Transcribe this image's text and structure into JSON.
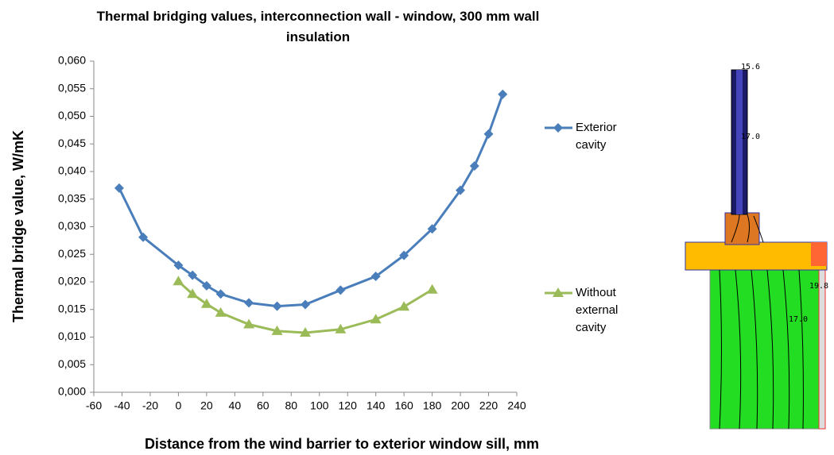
{
  "chart_data": {
    "type": "line",
    "title": "Thermal bridging values, interconnection wall - window, 300 mm wall insulation",
    "x_label": "Distance from the wind barrier to exterior window sill, mm",
    "y_label": "Thermal bridge value, W/mK",
    "xlim": [
      -60,
      240
    ],
    "xticks": [
      -60,
      -40,
      -20,
      0,
      20,
      40,
      60,
      80,
      100,
      120,
      140,
      160,
      180,
      200,
      220,
      240
    ],
    "ylim": [
      0,
      0.06
    ],
    "yticks": [
      {
        "value": 0,
        "label": "0,000"
      },
      {
        "value": 0.005,
        "label": "0,005"
      },
      {
        "value": 0.01,
        "label": "0,010"
      },
      {
        "value": 0.015,
        "label": "0,015"
      },
      {
        "value": 0.02,
        "label": "0,020"
      },
      {
        "value": 0.025,
        "label": "0,025"
      },
      {
        "value": 0.03,
        "label": "0,030"
      },
      {
        "value": 0.035,
        "label": "0,035"
      },
      {
        "value": 0.04,
        "label": "0,040"
      },
      {
        "value": 0.045,
        "label": "0,045"
      },
      {
        "value": 0.05,
        "label": "0,050"
      },
      {
        "value": 0.055,
        "label": "0,055"
      },
      {
        "value": 0.06,
        "label": "0,060"
      }
    ],
    "grid": false,
    "series": [
      {
        "name": "Exterior cavity",
        "color": "#4a7ebb",
        "marker": "diamond",
        "x": [
          -42,
          -25,
          0,
          10,
          20,
          30,
          50,
          70,
          90,
          115,
          140,
          160,
          180,
          200,
          210,
          220,
          230
        ],
        "values": [
          0.037,
          0.0281,
          0.023,
          0.0212,
          0.0193,
          0.0178,
          0.0162,
          0.0156,
          0.0159,
          0.0185,
          0.021,
          0.0248,
          0.0296,
          0.0366,
          0.041,
          0.0468,
          0.054
        ]
      },
      {
        "name": "Without external cavity",
        "color": "#9bbb59",
        "marker": "triangle",
        "x": [
          0,
          10,
          20,
          30,
          50,
          70,
          90,
          115,
          140,
          160,
          180
        ],
        "values": [
          0.0201,
          0.0178,
          0.016,
          0.0144,
          0.0123,
          0.0111,
          0.0108,
          0.0114,
          0.0132,
          0.0155,
          0.0186
        ]
      }
    ]
  },
  "thermal_image": {
    "labels": [
      "15.6",
      "17.0",
      "19.8",
      "17.0"
    ]
  }
}
